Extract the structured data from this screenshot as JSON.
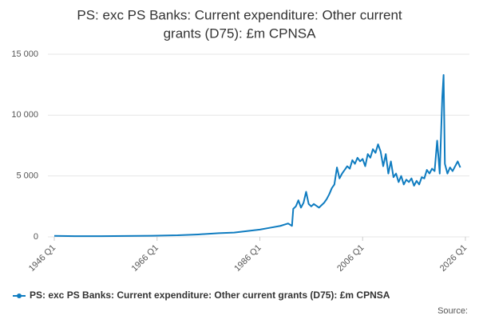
{
  "chart_data": {
    "type": "line",
    "title_lines": [
      "PS: exc PS Banks: Current expenditure: Other current",
      "grants (D75): £m CPNSA"
    ],
    "source": "Source:",
    "xlim": [
      1946,
      2026
    ],
    "xticks": [
      {
        "value": 1946,
        "label": "1946 Q1"
      },
      {
        "value": 1966,
        "label": "1966 Q1"
      },
      {
        "value": 1986,
        "label": "1986 Q1"
      },
      {
        "value": 2006,
        "label": "2006 Q1"
      },
      {
        "value": 2026,
        "label": "2026 Q1"
      }
    ],
    "ylim": [
      0,
      15000
    ],
    "yticks": [
      0,
      {
        "value": 5000,
        "label": "5 000"
      },
      {
        "value": 10000,
        "label": "10 000"
      },
      {
        "value": 15000,
        "label": "15 000"
      }
    ],
    "grid": true,
    "x": [
      1946,
      1950,
      1955,
      1960,
      1965,
      1970,
      1974,
      1978,
      1981,
      1984,
      1986,
      1988,
      1990,
      1991.5,
      1992.25,
      1992.5,
      1993,
      1993.5,
      1994,
      1994.5,
      1995,
      1995.5,
      1996,
      1996.5,
      1997.5,
      1998.5,
      1999,
      1999.5,
      2000,
      2000.5,
      2001,
      2001.5,
      2002,
      2002.5,
      2003,
      2003.5,
      2004,
      2004.5,
      2005,
      2005.5,
      2006,
      2006.5,
      2007,
      2007.5,
      2008,
      2008.5,
      2009,
      2009.5,
      2010,
      2010.5,
      2011,
      2011.5,
      2012,
      2012.5,
      2013,
      2013.5,
      2014,
      2014.5,
      2015,
      2015.5,
      2016,
      2016.5,
      2017,
      2017.5,
      2018,
      2018.5,
      2019,
      2019.5,
      2020,
      2020.5,
      2021,
      2021.5,
      2021.75,
      2022,
      2022.5,
      2023,
      2023.5,
      2024,
      2024.5,
      2025
    ],
    "series": [
      {
        "name": "PS: exc PS Banks: Current expenditure: Other current grants (D75): £m CPNSA",
        "color": "#0f7cc0",
        "values": [
          80,
          60,
          60,
          70,
          90,
          130,
          200,
          300,
          350,
          500,
          600,
          750,
          900,
          1100,
          900,
          2300,
          2500,
          3000,
          2400,
          2800,
          3700,
          2700,
          2500,
          2700,
          2400,
          2800,
          3100,
          3500,
          4000,
          4300,
          5700,
          4800,
          5200,
          5500,
          5800,
          5600,
          6300,
          6000,
          6500,
          6200,
          6400,
          5800,
          6800,
          6500,
          7200,
          6900,
          7600,
          7000,
          5800,
          6800,
          5200,
          6200,
          4900,
          5200,
          4500,
          5000,
          4300,
          4700,
          4500,
          4800,
          4200,
          4600,
          4300,
          4900,
          4800,
          5500,
          5200,
          5600,
          5400,
          7900,
          5200,
          11500,
          13300,
          6000,
          5200,
          5700,
          5400,
          5800,
          6200,
          5700
        ]
      }
    ]
  }
}
